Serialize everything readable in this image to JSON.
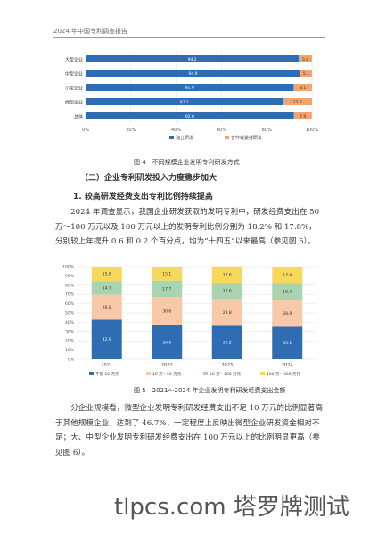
{
  "header": {
    "title": "2024 年中国专利调查报告"
  },
  "figure4": {
    "caption": "图 4　不同规模企业发明专利研发方式",
    "chart_data": {
      "type": "bar",
      "orientation": "horizontal",
      "stacked": true,
      "categories": [
        "大型企业",
        "中型企业",
        "小型企业",
        "微型企业",
        "总体"
      ],
      "series": [
        {
          "name": "独立研发",
          "color": "#2e6db4",
          "values": [
            94.2,
            94.9,
            91.9,
            87.2,
            92.0
          ]
        },
        {
          "name": "合作或委托研发",
          "color": "#f4a46a",
          "values": [
            5.8,
            5.1,
            8.1,
            12.8,
            7.9
          ]
        }
      ],
      "xlim": [
        0,
        100
      ],
      "xticks": [
        "0%",
        "20%",
        "40%",
        "60%",
        "80%",
        "100%"
      ],
      "legend_position": "bottom"
    }
  },
  "section": {
    "heading": "（二）企业专利研发投入力度稳步加大",
    "subheading": "1. 较高研发经费支出专利比例持续提高"
  },
  "paragraph1": "2024 年调查显示，我国企业研发获取的发明专利中，研发经费支出在 50 万～100 万元以及 100 万元以上的发明专利比例分别为 18.2% 和 17.8%，分别较上年提升 0.6 和 0.2 个百分点，均为“十四五”以来最高（参见图 5）。",
  "figure5": {
    "caption": "图 5　2021～2024 年企业发明专利研发经费支出金额",
    "chart_data": {
      "type": "bar",
      "stacked": true,
      "categories": [
        "2021",
        "2022",
        "2023",
        "2024"
      ],
      "series": [
        {
          "name": "不足 10 万元",
          "color": "#2e6db4",
          "values": [
            42.9,
            36.6,
            36.2,
            35.1
          ]
        },
        {
          "name": "10 万～50 万元",
          "color": "#f8c9a8",
          "values": [
            26.8,
            30.6,
            28.8,
            28.9
          ]
        },
        {
          "name": "50 万～100 万元",
          "color": "#a8d5b0",
          "values": [
            14.7,
            17.7,
            17.6,
            18.2
          ]
        },
        {
          "name": "100 万～300 万元",
          "color": "#f8d85a",
          "values": [
            15.6,
            15.1,
            17.6,
            17.8
          ]
        }
      ],
      "ylim": [
        0,
        100
      ],
      "yticks": [
        "0%",
        "10%",
        "20%",
        "30%",
        "40%",
        "50%",
        "60%",
        "70%",
        "80%",
        "90%",
        "100%"
      ],
      "legend_position": "bottom"
    }
  },
  "paragraph2": "分企业规模看，微型企业发明专利研发经费支出不足 10 万元的比例显著高于其他规模企业，达到了 46.7%，一定程度上反映出微型企业研发资金相对不足；大、中型企业发明专利研发经费支出在 100 万元以上的比例明显更高（参见图 6）。",
  "watermark": "tlpcs.com 塔罗牌测试"
}
